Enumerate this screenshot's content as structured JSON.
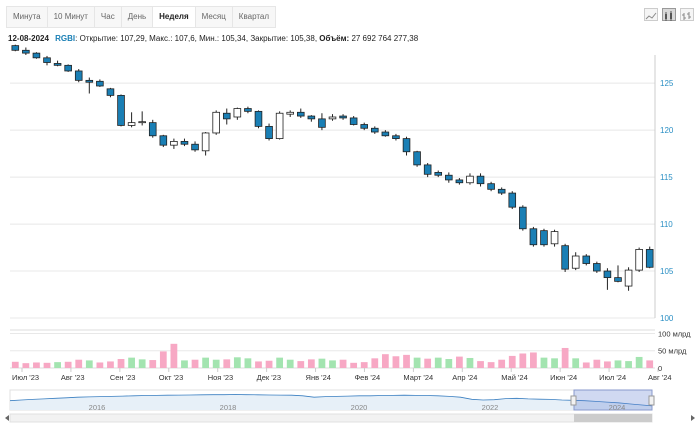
{
  "tabs": [
    "Минута",
    "10 Минут",
    "Час",
    "День",
    "Неделя",
    "Месяц",
    "Квартал"
  ],
  "active_tab": "Неделя",
  "tool_icons": [
    "line-chart-icon",
    "candlestick-icon",
    "bar-chart-icon"
  ],
  "info": {
    "date": "12-08-2024",
    "ticker": "RGBI",
    "open_label": "Открытие:",
    "open": "107,29,",
    "high_label": "Макс.:",
    "high": "107,6,",
    "low_label": "Мин.:",
    "low": "105,34,",
    "close_label": "Закрытие:",
    "close": "105,38,",
    "volume_label": "Объём:",
    "volume": "27 692 764 277,38"
  },
  "chart_data": {
    "type": "candlestick",
    "ylim": [
      100,
      128
    ],
    "y_ticks": [
      "100",
      "105",
      "110",
      "115",
      "120",
      "125"
    ],
    "volume_ticks": [
      "100 млрд",
      "50 млрд",
      "0"
    ],
    "x_tick_labels": [
      "Июл '23",
      "Авг '23",
      "Сен '23",
      "Окт '23",
      "Ноя '23",
      "Дек '23",
      "Янв '24",
      "Фев '24",
      "Март '24",
      "Апр '24",
      "Май '24",
      "Июн '24",
      "Июл '24",
      "Авг '24"
    ],
    "navigator_labels": [
      "2016",
      "2018",
      "2020",
      "2022",
      "2024"
    ],
    "colors": {
      "up": "#ffffff",
      "down": "#1a7fb5",
      "stroke": "#222222",
      "vol_up": "#a3e4b0",
      "vol_down": "#f7a8c4",
      "grid": "#e8e8e8",
      "axis_text": "#2a8fc4"
    },
    "candles": [
      {
        "o": 129.0,
        "h": 129.1,
        "l": 128.4,
        "c": 128.5
      },
      {
        "o": 128.5,
        "h": 128.8,
        "l": 128.0,
        "c": 128.2
      },
      {
        "o": 128.2,
        "h": 128.3,
        "l": 127.6,
        "c": 127.7
      },
      {
        "o": 127.7,
        "h": 127.9,
        "l": 126.9,
        "c": 127.2
      },
      {
        "o": 127.1,
        "h": 127.4,
        "l": 126.8,
        "c": 126.9
      },
      {
        "o": 126.9,
        "h": 127.0,
        "l": 126.2,
        "c": 126.3
      },
      {
        "o": 126.3,
        "h": 126.5,
        "l": 125.1,
        "c": 125.3
      },
      {
        "o": 125.3,
        "h": 125.6,
        "l": 123.9,
        "c": 125.1
      },
      {
        "o": 125.2,
        "h": 125.4,
        "l": 124.6,
        "c": 124.7
      },
      {
        "o": 124.4,
        "h": 124.5,
        "l": 123.5,
        "c": 123.7
      },
      {
        "o": 123.7,
        "h": 123.8,
        "l": 120.4,
        "c": 120.5
      },
      {
        "o": 120.5,
        "h": 121.9,
        "l": 120.3,
        "c": 120.8
      },
      {
        "o": 120.8,
        "h": 122.0,
        "l": 120.5,
        "c": 120.9
      },
      {
        "o": 120.8,
        "h": 121.1,
        "l": 119.2,
        "c": 119.4
      },
      {
        "o": 119.4,
        "h": 119.5,
        "l": 118.2,
        "c": 118.4
      },
      {
        "o": 118.4,
        "h": 119.1,
        "l": 118.0,
        "c": 118.8
      },
      {
        "o": 118.8,
        "h": 119.1,
        "l": 118.3,
        "c": 118.5
      },
      {
        "o": 118.5,
        "h": 118.8,
        "l": 117.7,
        "c": 117.9
      },
      {
        "o": 117.8,
        "h": 119.8,
        "l": 117.3,
        "c": 119.7
      },
      {
        "o": 119.7,
        "h": 122.1,
        "l": 119.5,
        "c": 121.9
      },
      {
        "o": 121.8,
        "h": 122.3,
        "l": 120.6,
        "c": 121.2
      },
      {
        "o": 121.4,
        "h": 122.4,
        "l": 121.1,
        "c": 122.3
      },
      {
        "o": 122.3,
        "h": 122.5,
        "l": 121.8,
        "c": 122.0
      },
      {
        "o": 122.0,
        "h": 122.1,
        "l": 120.2,
        "c": 120.4
      },
      {
        "o": 120.4,
        "h": 120.7,
        "l": 118.9,
        "c": 119.1
      },
      {
        "o": 119.1,
        "h": 122.0,
        "l": 119.0,
        "c": 121.8
      },
      {
        "o": 121.7,
        "h": 122.1,
        "l": 121.4,
        "c": 121.9
      },
      {
        "o": 121.9,
        "h": 122.3,
        "l": 121.3,
        "c": 121.5
      },
      {
        "o": 121.5,
        "h": 121.6,
        "l": 120.9,
        "c": 121.2
      },
      {
        "o": 121.2,
        "h": 121.8,
        "l": 120.0,
        "c": 120.3
      },
      {
        "o": 121.2,
        "h": 121.7,
        "l": 121.0,
        "c": 121.4
      },
      {
        "o": 121.5,
        "h": 121.7,
        "l": 121.1,
        "c": 121.3
      },
      {
        "o": 121.3,
        "h": 121.5,
        "l": 120.5,
        "c": 120.6
      },
      {
        "o": 120.6,
        "h": 120.8,
        "l": 120.0,
        "c": 120.2
      },
      {
        "o": 120.2,
        "h": 120.4,
        "l": 119.6,
        "c": 119.8
      },
      {
        "o": 119.8,
        "h": 120.0,
        "l": 119.3,
        "c": 119.4
      },
      {
        "o": 119.4,
        "h": 119.6,
        "l": 118.9,
        "c": 119.1
      },
      {
        "o": 119.1,
        "h": 119.3,
        "l": 117.3,
        "c": 117.7
      },
      {
        "o": 117.7,
        "h": 117.8,
        "l": 116.1,
        "c": 116.3
      },
      {
        "o": 116.3,
        "h": 116.5,
        "l": 115.0,
        "c": 115.3
      },
      {
        "o": 115.5,
        "h": 115.7,
        "l": 115.0,
        "c": 115.2
      },
      {
        "o": 115.2,
        "h": 115.5,
        "l": 114.4,
        "c": 114.7
      },
      {
        "o": 114.7,
        "h": 114.9,
        "l": 114.2,
        "c": 114.4
      },
      {
        "o": 114.4,
        "h": 115.4,
        "l": 114.2,
        "c": 115.1
      },
      {
        "o": 115.1,
        "h": 115.4,
        "l": 114.0,
        "c": 114.3
      },
      {
        "o": 114.3,
        "h": 114.5,
        "l": 113.5,
        "c": 113.7
      },
      {
        "o": 113.7,
        "h": 113.9,
        "l": 113.1,
        "c": 113.3
      },
      {
        "o": 113.3,
        "h": 113.5,
        "l": 111.6,
        "c": 111.8
      },
      {
        "o": 111.8,
        "h": 112.0,
        "l": 109.3,
        "c": 109.5
      },
      {
        "o": 109.5,
        "h": 109.7,
        "l": 107.6,
        "c": 107.8
      },
      {
        "o": 109.3,
        "h": 109.5,
        "l": 107.6,
        "c": 107.8
      },
      {
        "o": 107.9,
        "h": 109.4,
        "l": 107.6,
        "c": 109.2
      },
      {
        "o": 107.7,
        "h": 107.9,
        "l": 104.9,
        "c": 105.2
      },
      {
        "o": 105.3,
        "h": 107.0,
        "l": 105.1,
        "c": 106.6
      },
      {
        "o": 106.6,
        "h": 106.8,
        "l": 105.6,
        "c": 105.8
      },
      {
        "o": 105.8,
        "h": 106.0,
        "l": 104.8,
        "c": 105.0
      },
      {
        "o": 105.0,
        "h": 105.3,
        "l": 103.0,
        "c": 104.3
      },
      {
        "o": 104.3,
        "h": 105.6,
        "l": 103.8,
        "c": 103.9
      },
      {
        "o": 103.4,
        "h": 105.4,
        "l": 102.9,
        "c": 105.1
      },
      {
        "o": 105.1,
        "h": 107.5,
        "l": 104.9,
        "c": 107.3
      },
      {
        "o": 107.3,
        "h": 107.6,
        "l": 105.3,
        "c": 105.4
      }
    ],
    "volumes": [
      {
        "v": 18,
        "up": false
      },
      {
        "v": 14,
        "up": false
      },
      {
        "v": 16,
        "up": false
      },
      {
        "v": 15,
        "up": false
      },
      {
        "v": 17,
        "up": true
      },
      {
        "v": 18,
        "up": false
      },
      {
        "v": 24,
        "up": false
      },
      {
        "v": 22,
        "up": true
      },
      {
        "v": 16,
        "up": false
      },
      {
        "v": 19,
        "up": false
      },
      {
        "v": 26,
        "up": false
      },
      {
        "v": 30,
        "up": true
      },
      {
        "v": 25,
        "up": true
      },
      {
        "v": 23,
        "up": false
      },
      {
        "v": 48,
        "up": false
      },
      {
        "v": 70,
        "up": false
      },
      {
        "v": 22,
        "up": true
      },
      {
        "v": 24,
        "up": false
      },
      {
        "v": 30,
        "up": true
      },
      {
        "v": 24,
        "up": true
      },
      {
        "v": 25,
        "up": false
      },
      {
        "v": 31,
        "up": true
      },
      {
        "v": 28,
        "up": true
      },
      {
        "v": 19,
        "up": false
      },
      {
        "v": 21,
        "up": false
      },
      {
        "v": 30,
        "up": true
      },
      {
        "v": 24,
        "up": true
      },
      {
        "v": 20,
        "up": false
      },
      {
        "v": 25,
        "up": false
      },
      {
        "v": 27,
        "up": true
      },
      {
        "v": 22,
        "up": true
      },
      {
        "v": 24,
        "up": false
      },
      {
        "v": 15,
        "up": false
      },
      {
        "v": 17,
        "up": false
      },
      {
        "v": 28,
        "up": false
      },
      {
        "v": 40,
        "up": false
      },
      {
        "v": 34,
        "up": false
      },
      {
        "v": 38,
        "up": false
      },
      {
        "v": 30,
        "up": true
      },
      {
        "v": 27,
        "up": false
      },
      {
        "v": 30,
        "up": true
      },
      {
        "v": 26,
        "up": true
      },
      {
        "v": 33,
        "up": false
      },
      {
        "v": 29,
        "up": true
      },
      {
        "v": 20,
        "up": false
      },
      {
        "v": 17,
        "up": false
      },
      {
        "v": 24,
        "up": false
      },
      {
        "v": 35,
        "up": false
      },
      {
        "v": 42,
        "up": false
      },
      {
        "v": 45,
        "up": false
      },
      {
        "v": 30,
        "up": true
      },
      {
        "v": 28,
        "up": true
      },
      {
        "v": 58,
        "up": false
      },
      {
        "v": 28,
        "up": true
      },
      {
        "v": 16,
        "up": false
      },
      {
        "v": 24,
        "up": false
      },
      {
        "v": 19,
        "up": false
      },
      {
        "v": 22,
        "up": true
      },
      {
        "v": 20,
        "up": true
      },
      {
        "v": 32,
        "up": true
      },
      {
        "v": 22,
        "up": false
      }
    ],
    "navigator_line": [
      0.55,
      0.5,
      0.46,
      0.42,
      0.38,
      0.34,
      0.3,
      0.28,
      0.26,
      0.24,
      0.22,
      0.2,
      0.18,
      0.17,
      0.16,
      0.15,
      0.14,
      0.13,
      0.12,
      0.12,
      0.11,
      0.12,
      0.13,
      0.14,
      0.15,
      0.16,
      0.2,
      0.3,
      0.26,
      0.24,
      0.22,
      0.2,
      0.2,
      0.18,
      0.17,
      0.16,
      0.17,
      0.18,
      0.2,
      0.24,
      0.3,
      0.45,
      0.5,
      0.48,
      0.4,
      0.38,
      0.42,
      0.44,
      0.46,
      0.5,
      0.52,
      0.55,
      0.6,
      0.65,
      0.7,
      0.78,
      0.85,
      0.92
    ]
  }
}
